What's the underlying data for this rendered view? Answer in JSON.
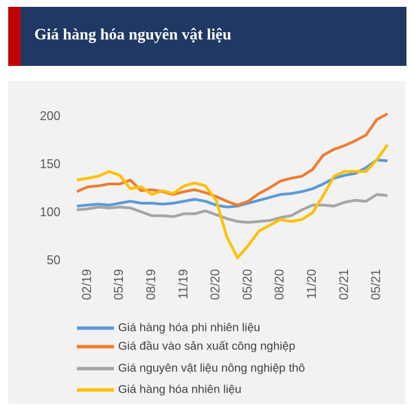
{
  "chart_data": {
    "type": "line",
    "title": "Giá hàng hóa nguyên vật liệu",
    "categories": [
      null,
      "02/19",
      null,
      null,
      "05/19",
      null,
      null,
      "08/19",
      null,
      null,
      "11/19",
      null,
      null,
      "02/20",
      null,
      null,
      "05/20",
      null,
      null,
      "08/20",
      null,
      null,
      "11/20",
      null,
      null,
      "02/21",
      null,
      null,
      "05/21",
      null
    ],
    "series": [
      {
        "name": "Giá hàng hóa phi nhiên liệu",
        "color": "#5b9bd5",
        "values": [
          107,
          108,
          109,
          108,
          110,
          112,
          110,
          110,
          109,
          110,
          112,
          114,
          112,
          108,
          106,
          107,
          110,
          113,
          116,
          119,
          120,
          122,
          125,
          130,
          136,
          139,
          141,
          147,
          155,
          154
        ]
      },
      {
        "name": "Giá đầu vào sản xuất công nghiệp",
        "color": "#ed7d31",
        "values": [
          122,
          127,
          128,
          130,
          130,
          134,
          123,
          124,
          122,
          119,
          122,
          124,
          121,
          117,
          112,
          108,
          112,
          120,
          126,
          133,
          136,
          138,
          145,
          160,
          166,
          170,
          175,
          181,
          197,
          203
        ]
      },
      {
        "name": "Giá nguyên vật liệu nông nghiệp thô",
        "color": "#a5a5a5",
        "values": [
          103,
          104,
          106,
          105,
          106,
          105,
          101,
          97,
          97,
          96,
          99,
          99,
          102,
          98,
          94,
          91,
          90,
          91,
          92,
          95,
          97,
          103,
          108,
          108,
          107,
          111,
          113,
          112,
          119,
          118
        ]
      },
      {
        "name": "Giá hàng hóa nhiên liệu",
        "color": "#ffc000",
        "values": [
          134,
          136,
          138,
          143,
          139,
          125,
          127,
          119,
          123,
          120,
          128,
          131,
          128,
          113,
          75,
          53,
          66,
          81,
          87,
          93,
          91,
          93,
          100,
          118,
          138,
          143,
          143,
          143,
          155,
          171
        ]
      }
    ],
    "ylim": [
      50,
      210
    ],
    "yticks": [
      50,
      100,
      150,
      200
    ],
    "grid": false,
    "legend": "bottom"
  }
}
